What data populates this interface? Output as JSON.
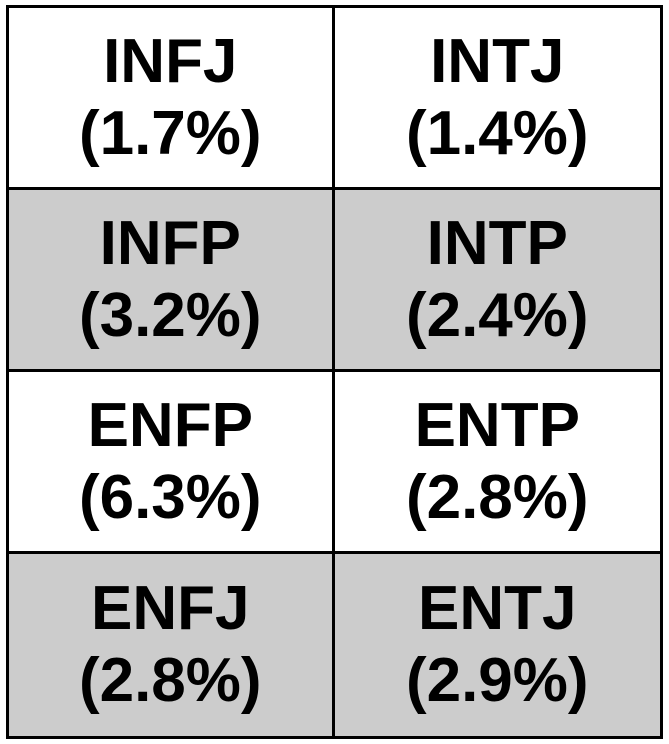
{
  "colors": {
    "shaded_row": "#cccccc",
    "plain_row": "#ffffff",
    "border": "#000000",
    "text": "#000000"
  },
  "rows": [
    [
      {
        "type": "INFJ",
        "percent": "(1.7%)"
      },
      {
        "type": "INTJ",
        "percent": "(1.4%)"
      }
    ],
    [
      {
        "type": "INFP",
        "percent": "(3.2%)"
      },
      {
        "type": "INTP",
        "percent": "(2.4%)"
      }
    ],
    [
      {
        "type": "ENFP",
        "percent": "(6.3%)"
      },
      {
        "type": "ENTP",
        "percent": "(2.8%)"
      }
    ],
    [
      {
        "type": "ENFJ",
        "percent": "(2.8%)"
      },
      {
        "type": "ENTJ",
        "percent": "(2.9%)"
      }
    ]
  ]
}
